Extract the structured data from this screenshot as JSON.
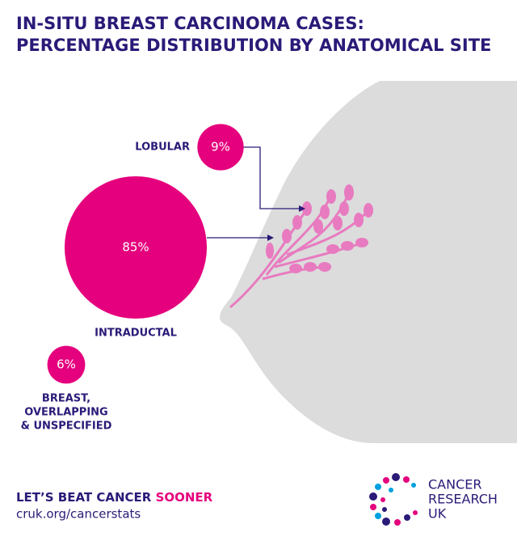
{
  "chart_data": {
    "type": "bubble",
    "title": [
      "IN-SITU BREAST CARCINOMA CASES:",
      "PERCENTAGE DISTRIBUTION BY ANATOMICAL SITE"
    ],
    "categories": [
      [
        "LOBULAR"
      ],
      [
        "INTRADUCTAL"
      ],
      [
        "BREAST,",
        "OVERLAPPING",
        "& UNSPECIFIED"
      ]
    ],
    "values": [
      9,
      85,
      6
    ],
    "value_labels": [
      "9%",
      "85%",
      "6%"
    ],
    "color": "#e5007d"
  },
  "footer": {
    "tagline": [
      "LET’S BEAT CANCER",
      "SOONER"
    ],
    "url": "cruk.org/cancerstats",
    "logo": [
      "CANCER",
      "RESEARCH",
      "UK"
    ]
  }
}
